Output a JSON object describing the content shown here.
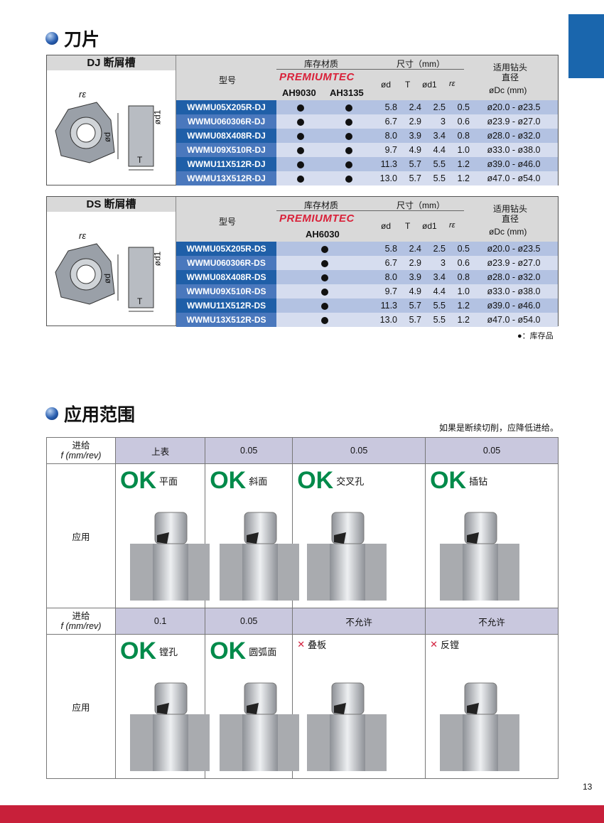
{
  "section1_title": "刀片",
  "section2_title": "应用范围",
  "dj": {
    "groove": "DJ 断屑槽",
    "model": "型号",
    "stock": "库存材质",
    "dims": "尺寸（mm）",
    "brand": "PREMIUMTEC",
    "grades": [
      "AH9030",
      "AH3135"
    ],
    "cols": [
      "ød",
      "T",
      "ød1",
      "rε"
    ],
    "drill1": "适用钻头",
    "drill2": "直径",
    "drill3": "øDc (mm)",
    "rows": [
      [
        "WWMU05X205R-DJ",
        "5.8",
        "2.4",
        "2.5",
        "0.5",
        "ø20.0 - ø23.5"
      ],
      [
        "WWMU060306R-DJ",
        "6.7",
        "2.9",
        "3",
        "0.6",
        "ø23.9 - ø27.0"
      ],
      [
        "WWMU08X408R-DJ",
        "8.0",
        "3.9",
        "3.4",
        "0.8",
        "ø28.0 - ø32.0"
      ],
      [
        "WWMU09X510R-DJ",
        "9.7",
        "4.9",
        "4.4",
        "1.0",
        "ø33.0 - ø38.0"
      ],
      [
        "WWMU11X512R-DJ",
        "11.3",
        "5.7",
        "5.5",
        "1.2",
        "ø39.0 - ø46.0"
      ],
      [
        "WWMU13X512R-DJ",
        "13.0",
        "5.7",
        "5.5",
        "1.2",
        "ø47.0 - ø54.0"
      ]
    ]
  },
  "ds": {
    "groove": "DS 断屑槽",
    "model": "型号",
    "stock": "库存材质",
    "dims": "尺寸（mm）",
    "brand": "PREMIUMTEC",
    "grades": [
      "AH6030"
    ],
    "cols": [
      "ød",
      "T",
      "ød1",
      "rε"
    ],
    "drill1": "适用钻头",
    "drill2": "直径",
    "drill3": "øDc (mm)",
    "rows": [
      [
        "WWMU05X205R-DS",
        "5.8",
        "2.4",
        "2.5",
        "0.5",
        "ø20.0 - ø23.5"
      ],
      [
        "WWMU060306R-DS",
        "6.7",
        "2.9",
        "3",
        "0.6",
        "ø23.9 - ø27.0"
      ],
      [
        "WWMU08X408R-DS",
        "8.0",
        "3.9",
        "3.4",
        "0.8",
        "ø28.0 - ø32.0"
      ],
      [
        "WWMU09X510R-DS",
        "9.7",
        "4.9",
        "4.4",
        "1.0",
        "ø33.0 - ø38.0"
      ],
      [
        "WWMU11X512R-DS",
        "11.3",
        "5.7",
        "5.5",
        "1.2",
        "ø39.0 - ø46.0"
      ],
      [
        "WWMU13X512R-DS",
        "13.0",
        "5.7",
        "5.5",
        "1.2",
        "ø47.0 - ø54.0"
      ]
    ]
  },
  "diagram_labels": {
    "re": "rε",
    "d": "ød",
    "d1": "ød1",
    "t": "T"
  },
  "legend": "●：库存品",
  "note": "如果是断续切削，应降低进给。",
  "app": {
    "feed_label1": "进给",
    "feed_label2": "f (mm/rev)",
    "use_label": "应用",
    "row1": [
      {
        "feed": "上表",
        "status": "OK",
        "name": "平面"
      },
      {
        "feed": "0.05",
        "status": "OK",
        "name": "斜面"
      },
      {
        "feed": "0.05",
        "status": "OK",
        "name": "交叉孔"
      },
      {
        "feed": "0.05",
        "status": "OK",
        "name": "插钻"
      }
    ],
    "row2": [
      {
        "feed": "0.1",
        "status": "OK",
        "name": "镗孔"
      },
      {
        "feed": "0.05",
        "status": "OK",
        "name": "圆弧面"
      },
      {
        "feed": "不允许",
        "status": "✕",
        "name": "叠板"
      },
      {
        "feed": "不允许",
        "status": "✕",
        "name": "反镗"
      }
    ]
  },
  "page_number": "13",
  "colors": {
    "tab": "#1a66ad",
    "ok": "#008a4a",
    "ng": "#d21f3c",
    "footer": "#c8203a",
    "model_dark": "#1f5fa8",
    "model_light": "#4a78bd"
  }
}
